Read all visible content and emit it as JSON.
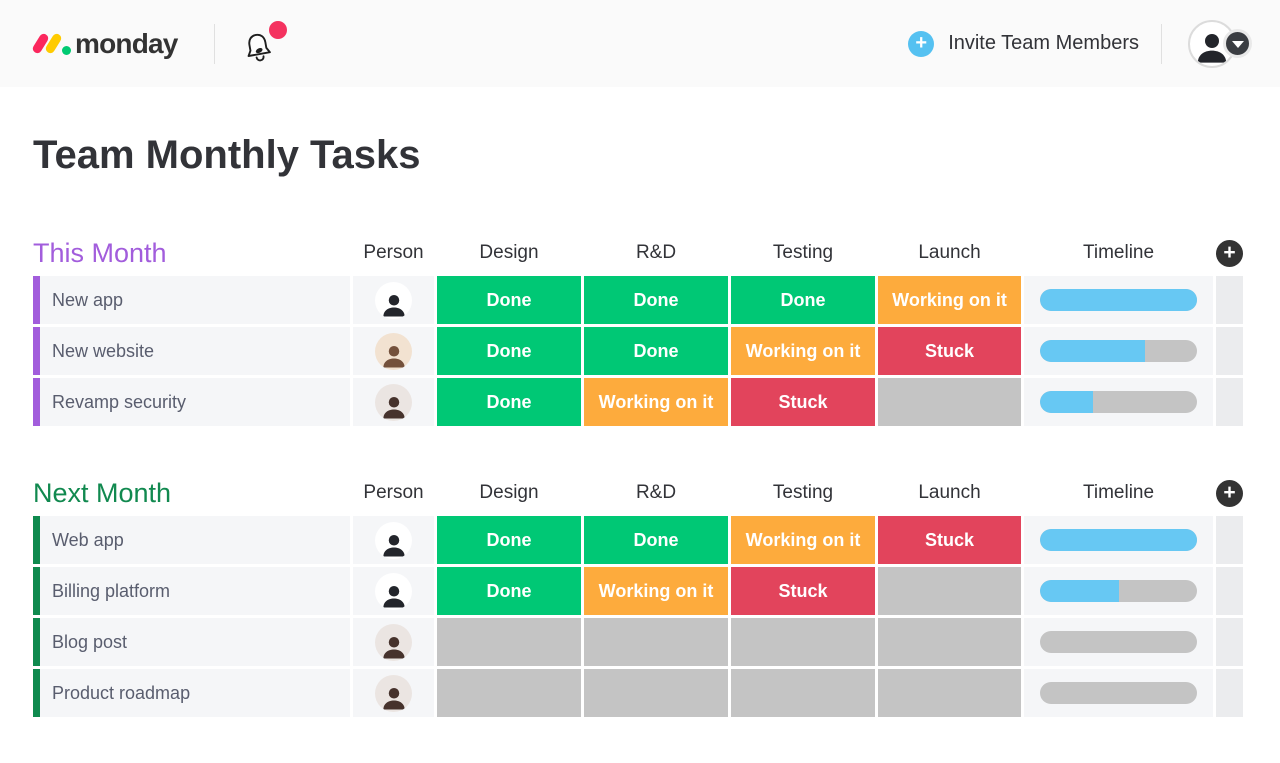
{
  "topbar": {
    "logo_text": "monday",
    "invite_label": "Invite Team Members"
  },
  "icons": {
    "plus": "+"
  },
  "colors": {
    "status_done": "#00c875",
    "status_working": "#fdab3d",
    "status_stuck": "#e2445c",
    "status_empty": "#c4c4c4",
    "timeline_fill": "#67c8f3",
    "timeline_track": "#c4c4c4",
    "group_this_month": "#a25ddc",
    "group_next_month": "#11894f",
    "invite_plus_bg": "#55c1f1",
    "notification_dot": "#f4325f",
    "add_column_bg": "#333333"
  },
  "page": {
    "title": "Team Monthly Tasks"
  },
  "columns": [
    "Person",
    "Design",
    "R&D",
    "Testing",
    "Launch",
    "Timeline"
  ],
  "groups": [
    {
      "name": "This Month",
      "rows": [
        {
          "task": "New app",
          "avatar": "man-suit",
          "statuses": [
            {
              "label": "Done",
              "type": "done"
            },
            {
              "label": "Done",
              "type": "done"
            },
            {
              "label": "Done",
              "type": "done"
            },
            {
              "label": "Working on it",
              "type": "working"
            }
          ],
          "timeline_pct": 100
        },
        {
          "task": "New website",
          "avatar": "man-beard",
          "statuses": [
            {
              "label": "Done",
              "type": "done"
            },
            {
              "label": "Done",
              "type": "done"
            },
            {
              "label": "Working on it",
              "type": "working"
            },
            {
              "label": "Stuck",
              "type": "stuck"
            }
          ],
          "timeline_pct": 67
        },
        {
          "task": "Revamp security",
          "avatar": "woman",
          "statuses": [
            {
              "label": "Done",
              "type": "done"
            },
            {
              "label": "Working on it",
              "type": "working"
            },
            {
              "label": "Stuck",
              "type": "stuck"
            },
            {
              "label": "",
              "type": "empty"
            }
          ],
          "timeline_pct": 34
        }
      ]
    },
    {
      "name": "Next Month",
      "rows": [
        {
          "task": "Web app",
          "avatar": "man-suit",
          "statuses": [
            {
              "label": "Done",
              "type": "done"
            },
            {
              "label": "Done",
              "type": "done"
            },
            {
              "label": "Working on it",
              "type": "working"
            },
            {
              "label": "Stuck",
              "type": "stuck"
            }
          ],
          "timeline_pct": 100
        },
        {
          "task": "Billing platform",
          "avatar": "man-suit",
          "statuses": [
            {
              "label": "Done",
              "type": "done"
            },
            {
              "label": "Working on it",
              "type": "working"
            },
            {
              "label": "Stuck",
              "type": "stuck"
            },
            {
              "label": "",
              "type": "empty"
            }
          ],
          "timeline_pct": 50
        },
        {
          "task": "Blog post",
          "avatar": "woman",
          "statuses": [
            {
              "label": "",
              "type": "empty"
            },
            {
              "label": "",
              "type": "empty"
            },
            {
              "label": "",
              "type": "empty"
            },
            {
              "label": "",
              "type": "empty"
            }
          ],
          "timeline_pct": 0
        },
        {
          "task": "Product roadmap",
          "avatar": "woman",
          "statuses": [
            {
              "label": "",
              "type": "empty"
            },
            {
              "label": "",
              "type": "empty"
            },
            {
              "label": "",
              "type": "empty"
            },
            {
              "label": "",
              "type": "empty"
            }
          ],
          "timeline_pct": 0
        }
      ]
    }
  ]
}
